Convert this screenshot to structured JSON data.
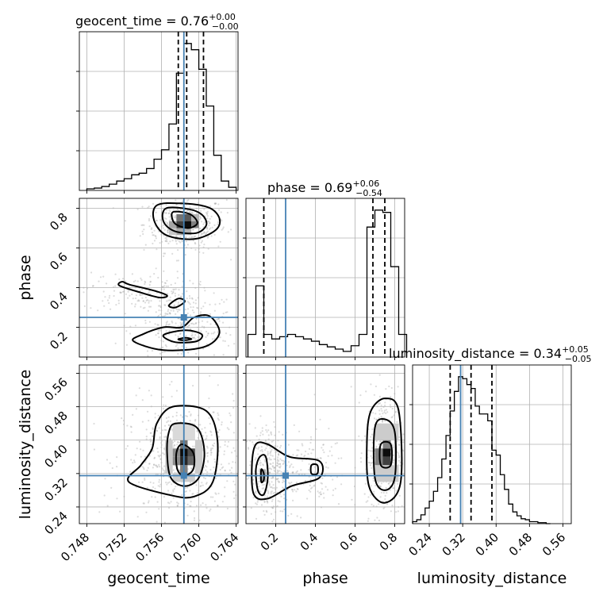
{
  "chart_data": {
    "type": "corner",
    "parameters": [
      "geocent_time",
      "phase",
      "luminosity_distance"
    ],
    "truths": {
      "geocent_time": 0.7584,
      "phase": 0.25,
      "luminosity_distance": 0.315
    },
    "truth_color": "#4682b4",
    "titles": [
      {
        "parameter": "geocent_time",
        "name": "geocent_time",
        "median": "0.76",
        "plus": "+0.00",
        "minus": "−0.00"
      },
      {
        "parameter": "phase",
        "name": "phase",
        "median": "0.69",
        "plus": "+0.06",
        "minus": "−0.54"
      },
      {
        "parameter": "luminosity_distance",
        "name": "luminosity_distance",
        "median": "0.34",
        "plus": "+0.05",
        "minus": "−0.05"
      }
    ],
    "axis_labels": {
      "bottom": [
        "geocent_time",
        "phase",
        "luminosity_distance"
      ],
      "left": [
        "phase",
        "luminosity_distance"
      ]
    },
    "ranges": {
      "geocent_time": [
        0.7472,
        0.7642
      ],
      "phase": [
        0.05,
        0.85
      ],
      "luminosity_distance": [
        0.2,
        0.58
      ]
    },
    "ticks": {
      "geocent_time": [
        "0.748",
        "0.752",
        "0.756",
        "0.760",
        "0.764"
      ],
      "phase": [
        "0.2",
        "0.4",
        "0.6",
        "0.8"
      ],
      "luminosity_distance": [
        "0.24",
        "0.32",
        "0.40",
        "0.48",
        "0.56"
      ]
    },
    "quantiles": {
      "geocent_time": [
        0.7578,
        0.7587,
        0.7605
      ],
      "phase": [
        0.14,
        0.69,
        0.75
      ],
      "luminosity_distance": [
        0.29,
        0.34,
        0.39
      ]
    },
    "histograms": {
      "geocent_time": {
        "edges": [
          0.748,
          0.7488,
          0.7496,
          0.7504,
          0.7512,
          0.752,
          0.7528,
          0.7536,
          0.7544,
          0.7552,
          0.756,
          0.7568,
          0.7576,
          0.7584,
          0.7592,
          0.76,
          0.7608,
          0.7616,
          0.7624,
          0.7632,
          0.764
        ],
        "counts": [
          2,
          3,
          5,
          8,
          12,
          15,
          20,
          22,
          28,
          40,
          52,
          85,
          150,
          188,
          180,
          155,
          108,
          45,
          12,
          4
        ]
      },
      "phase": {
        "edges": [
          0.06,
          0.1,
          0.14,
          0.18,
          0.22,
          0.26,
          0.3,
          0.34,
          0.38,
          0.42,
          0.46,
          0.5,
          0.54,
          0.58,
          0.62,
          0.66,
          0.7,
          0.74,
          0.78,
          0.82,
          0.86
        ],
        "counts": [
          20,
          63,
          20,
          16,
          18,
          20,
          18,
          16,
          14,
          11,
          9,
          7,
          5,
          10,
          20,
          115,
          130,
          128,
          80,
          20
        ]
      },
      "luminosity_distance": {
        "edges": [
          0.2,
          0.21,
          0.22,
          0.23,
          0.24,
          0.25,
          0.26,
          0.27,
          0.28,
          0.29,
          0.3,
          0.31,
          0.32,
          0.33,
          0.34,
          0.35,
          0.36,
          0.37,
          0.38,
          0.39,
          0.4,
          0.41,
          0.42,
          0.43,
          0.44,
          0.45,
          0.46,
          0.47,
          0.48,
          0.49,
          0.5,
          0.51,
          0.52,
          0.53
        ],
        "counts": [
          2,
          4,
          9,
          16,
          23,
          33,
          47,
          66,
          90,
          115,
          135,
          150,
          148,
          142,
          138,
          120,
          112,
          112,
          105,
          75,
          70,
          50,
          35,
          20,
          12,
          8,
          5,
          4,
          2,
          2,
          1,
          1,
          0
        ]
      }
    },
    "contours": [
      {
        "x": "geocent_time",
        "y": "phase",
        "levels": [
          [
            [
              0.7572,
              0.78
            ],
            [
              0.7574,
              0.725
            ],
            [
              0.7588,
              0.7
            ],
            [
              0.7598,
              0.72
            ],
            [
              0.7596,
              0.75
            ],
            [
              0.7588,
              0.775
            ]
          ],
          [
            [
              0.7565,
              0.8
            ],
            [
              0.7562,
              0.735
            ],
            [
              0.7574,
              0.685
            ],
            [
              0.7597,
              0.675
            ],
            [
              0.7608,
              0.715
            ],
            [
              0.7604,
              0.765
            ],
            [
              0.759,
              0.795
            ]
          ],
          [
            [
              0.7555,
              0.815
            ],
            [
              0.7552,
              0.74
            ],
            [
              0.7565,
              0.665
            ],
            [
              0.7595,
              0.645
            ],
            [
              0.7618,
              0.69
            ],
            [
              0.7622,
              0.75
            ],
            [
              0.761,
              0.805
            ],
            [
              0.758,
              0.825
            ]
          ],
          [
            [
              0.7578,
              0.14
            ],
            [
              0.7583,
              0.135
            ],
            [
              0.7592,
              0.14
            ],
            [
              0.7586,
              0.147
            ]
          ],
          [
            [
              0.7562,
              0.16
            ],
            [
              0.7575,
              0.125
            ],
            [
              0.7598,
              0.13
            ],
            [
              0.7603,
              0.165
            ],
            [
              0.7585,
              0.185
            ]
          ],
          [
            [
              0.753,
              0.13
            ],
            [
              0.7562,
              0.085
            ],
            [
              0.7605,
              0.1
            ],
            [
              0.7622,
              0.17
            ],
            [
              0.7612,
              0.255
            ],
            [
              0.7595,
              0.25
            ],
            [
              0.7582,
              0.2
            ],
            [
              0.7562,
              0.2
            ],
            [
              0.754,
              0.165
            ]
          ],
          [
            [
              0.7518,
              0.43
            ],
            [
              0.7526,
              0.415
            ],
            [
              0.7552,
              0.385
            ],
            [
              0.7566,
              0.36
            ],
            [
              0.7558,
              0.35
            ],
            [
              0.7538,
              0.375
            ],
            [
              0.7515,
              0.41
            ]
          ],
          [
            [
              0.7568,
              0.31
            ],
            [
              0.7575,
              0.3
            ],
            [
              0.7585,
              0.33
            ],
            [
              0.7578,
              0.345
            ]
          ]
        ]
      },
      {
        "x": "geocent_time",
        "y": "luminosity_distance",
        "levels": [
          [
            [
              0.7582,
              0.39
            ],
            [
              0.7594,
              0.37
            ],
            [
              0.7594,
              0.33
            ],
            [
              0.7584,
              0.315
            ],
            [
              0.7577,
              0.33
            ],
            [
              0.7576,
              0.37
            ]
          ],
          [
            [
              0.7575,
              0.44
            ],
            [
              0.7598,
              0.43
            ],
            [
              0.7606,
              0.37
            ],
            [
              0.76,
              0.31
            ],
            [
              0.7585,
              0.29
            ],
            [
              0.757,
              0.31
            ],
            [
              0.7566,
              0.37
            ],
            [
              0.7568,
              0.42
            ]
          ],
          [
            [
              0.7572,
              0.48
            ],
            [
              0.7608,
              0.47
            ],
            [
              0.762,
              0.4
            ],
            [
              0.7615,
              0.3
            ],
            [
              0.7595,
              0.265
            ],
            [
              0.757,
              0.268
            ],
            [
              0.7525,
              0.3
            ],
            [
              0.7538,
              0.34
            ],
            [
              0.755,
              0.38
            ],
            [
              0.7555,
              0.44
            ]
          ]
        ]
      },
      {
        "x": "phase",
        "y": "luminosity_distance",
        "levels": [
          [
            [
              0.127,
              0.33
            ],
            [
              0.14,
              0.32
            ],
            [
              0.14,
              0.305
            ],
            [
              0.127,
              0.3
            ]
          ],
          [
            [
              0.1,
              0.33
            ],
            [
              0.12,
              0.36
            ],
            [
              0.15,
              0.36
            ],
            [
              0.16,
              0.31
            ],
            [
              0.14,
              0.27
            ],
            [
              0.11,
              0.28
            ]
          ],
          [
            [
              0.08,
              0.34
            ],
            [
              0.1,
              0.39
            ],
            [
              0.16,
              0.39
            ],
            [
              0.27,
              0.36
            ],
            [
              0.42,
              0.35
            ],
            [
              0.42,
              0.31
            ],
            [
              0.28,
              0.29
            ],
            [
              0.16,
              0.26
            ],
            [
              0.09,
              0.27
            ]
          ],
          [
            [
              0.38,
              0.34
            ],
            [
              0.41,
              0.34
            ],
            [
              0.41,
              0.32
            ],
            [
              0.38,
              0.32
            ]
          ],
          [
            [
              0.73,
              0.39
            ],
            [
              0.78,
              0.39
            ],
            [
              0.78,
              0.34
            ],
            [
              0.73,
              0.34
            ]
          ],
          [
            [
              0.7,
              0.43
            ],
            [
              0.75,
              0.45
            ],
            [
              0.8,
              0.42
            ],
            [
              0.8,
              0.31
            ],
            [
              0.75,
              0.28
            ],
            [
              0.7,
              0.31
            ]
          ],
          [
            [
              0.68,
              0.47
            ],
            [
              0.75,
              0.5
            ],
            [
              0.82,
              0.47
            ],
            [
              0.83,
              0.3
            ],
            [
              0.75,
              0.25
            ],
            [
              0.67,
              0.29
            ],
            [
              0.66,
              0.4
            ]
          ]
        ]
      }
    ],
    "density_blocks": [
      {
        "x": "geocent_time",
        "y": "phase",
        "cells": [
          [
            0.7576,
            0.7584,
            0.735,
            0.77,
            0.55
          ],
          [
            0.7584,
            0.7592,
            0.735,
            0.77,
            0.65
          ],
          [
            0.7576,
            0.7584,
            0.7,
            0.735,
            0.75
          ],
          [
            0.7584,
            0.7592,
            0.7,
            0.735,
            0.95
          ],
          [
            0.7592,
            0.76,
            0.7,
            0.735,
            0.5
          ],
          [
            0.7568,
            0.7576,
            0.7,
            0.735,
            0.35
          ],
          [
            0.7568,
            0.7576,
            0.665,
            0.7,
            0.22
          ],
          [
            0.7576,
            0.7584,
            0.665,
            0.7,
            0.35
          ],
          [
            0.7584,
            0.7592,
            0.665,
            0.7,
            0.3
          ],
          [
            0.7592,
            0.76,
            0.735,
            0.77,
            0.3
          ]
        ]
      },
      {
        "x": "geocent_time",
        "y": "luminosity_distance",
        "cells": [
          [
            0.758,
            0.7588,
            0.36,
            0.38,
            0.95
          ],
          [
            0.7588,
            0.7596,
            0.36,
            0.38,
            0.7
          ],
          [
            0.758,
            0.7588,
            0.34,
            0.36,
            0.85
          ],
          [
            0.7588,
            0.7596,
            0.34,
            0.36,
            0.6
          ],
          [
            0.7572,
            0.758,
            0.34,
            0.36,
            0.45
          ],
          [
            0.7572,
            0.758,
            0.36,
            0.38,
            0.45
          ],
          [
            0.758,
            0.7588,
            0.38,
            0.4,
            0.55
          ],
          [
            0.758,
            0.7588,
            0.32,
            0.34,
            0.5
          ],
          [
            0.7564,
            0.7572,
            0.32,
            0.4,
            0.2
          ],
          [
            0.7596,
            0.7604,
            0.32,
            0.4,
            0.2
          ],
          [
            0.7572,
            0.7596,
            0.4,
            0.44,
            0.15
          ],
          [
            0.7572,
            0.7596,
            0.3,
            0.32,
            0.2
          ]
        ]
      },
      {
        "x": "phase",
        "y": "luminosity_distance",
        "cells": [
          [
            0.74,
            0.78,
            0.36,
            0.38,
            0.95
          ],
          [
            0.74,
            0.78,
            0.34,
            0.36,
            0.75
          ],
          [
            0.7,
            0.74,
            0.34,
            0.38,
            0.5
          ],
          [
            0.74,
            0.78,
            0.38,
            0.4,
            0.5
          ],
          [
            0.7,
            0.82,
            0.3,
            0.34,
            0.2
          ],
          [
            0.7,
            0.82,
            0.4,
            0.44,
            0.2
          ],
          [
            0.12,
            0.15,
            0.3,
            0.33,
            0.35
          ]
        ]
      }
    ],
    "scatter_regions": [
      {
        "x": "geocent_time",
        "y": "phase",
        "cx": 0.7585,
        "cy": 0.72,
        "sx": 0.0022,
        "sy": 0.07,
        "n": 380
      },
      {
        "x": "geocent_time",
        "y": "phase",
        "cx": 0.7585,
        "cy": 0.2,
        "sx": 0.0028,
        "sy": 0.09,
        "n": 300
      },
      {
        "x": "geocent_time",
        "y": "phase",
        "cx": 0.7535,
        "cy": 0.38,
        "sx": 0.003,
        "sy": 0.05,
        "n": 160
      },
      {
        "x": "geocent_time",
        "y": "luminosity_distance",
        "cx": 0.7584,
        "cy": 0.35,
        "sx": 0.0032,
        "sy": 0.07,
        "n": 650
      },
      {
        "x": "phase",
        "y": "luminosity_distance",
        "cx": 0.75,
        "cy": 0.37,
        "sx": 0.05,
        "sy": 0.075,
        "n": 420
      },
      {
        "x": "phase",
        "y": "luminosity_distance",
        "cx": 0.16,
        "cy": 0.32,
        "sx": 0.06,
        "sy": 0.06,
        "n": 320
      },
      {
        "x": "phase",
        "y": "luminosity_distance",
        "cx": 0.36,
        "cy": 0.33,
        "sx": 0.1,
        "sy": 0.05,
        "n": 140
      }
    ],
    "grid": true
  }
}
